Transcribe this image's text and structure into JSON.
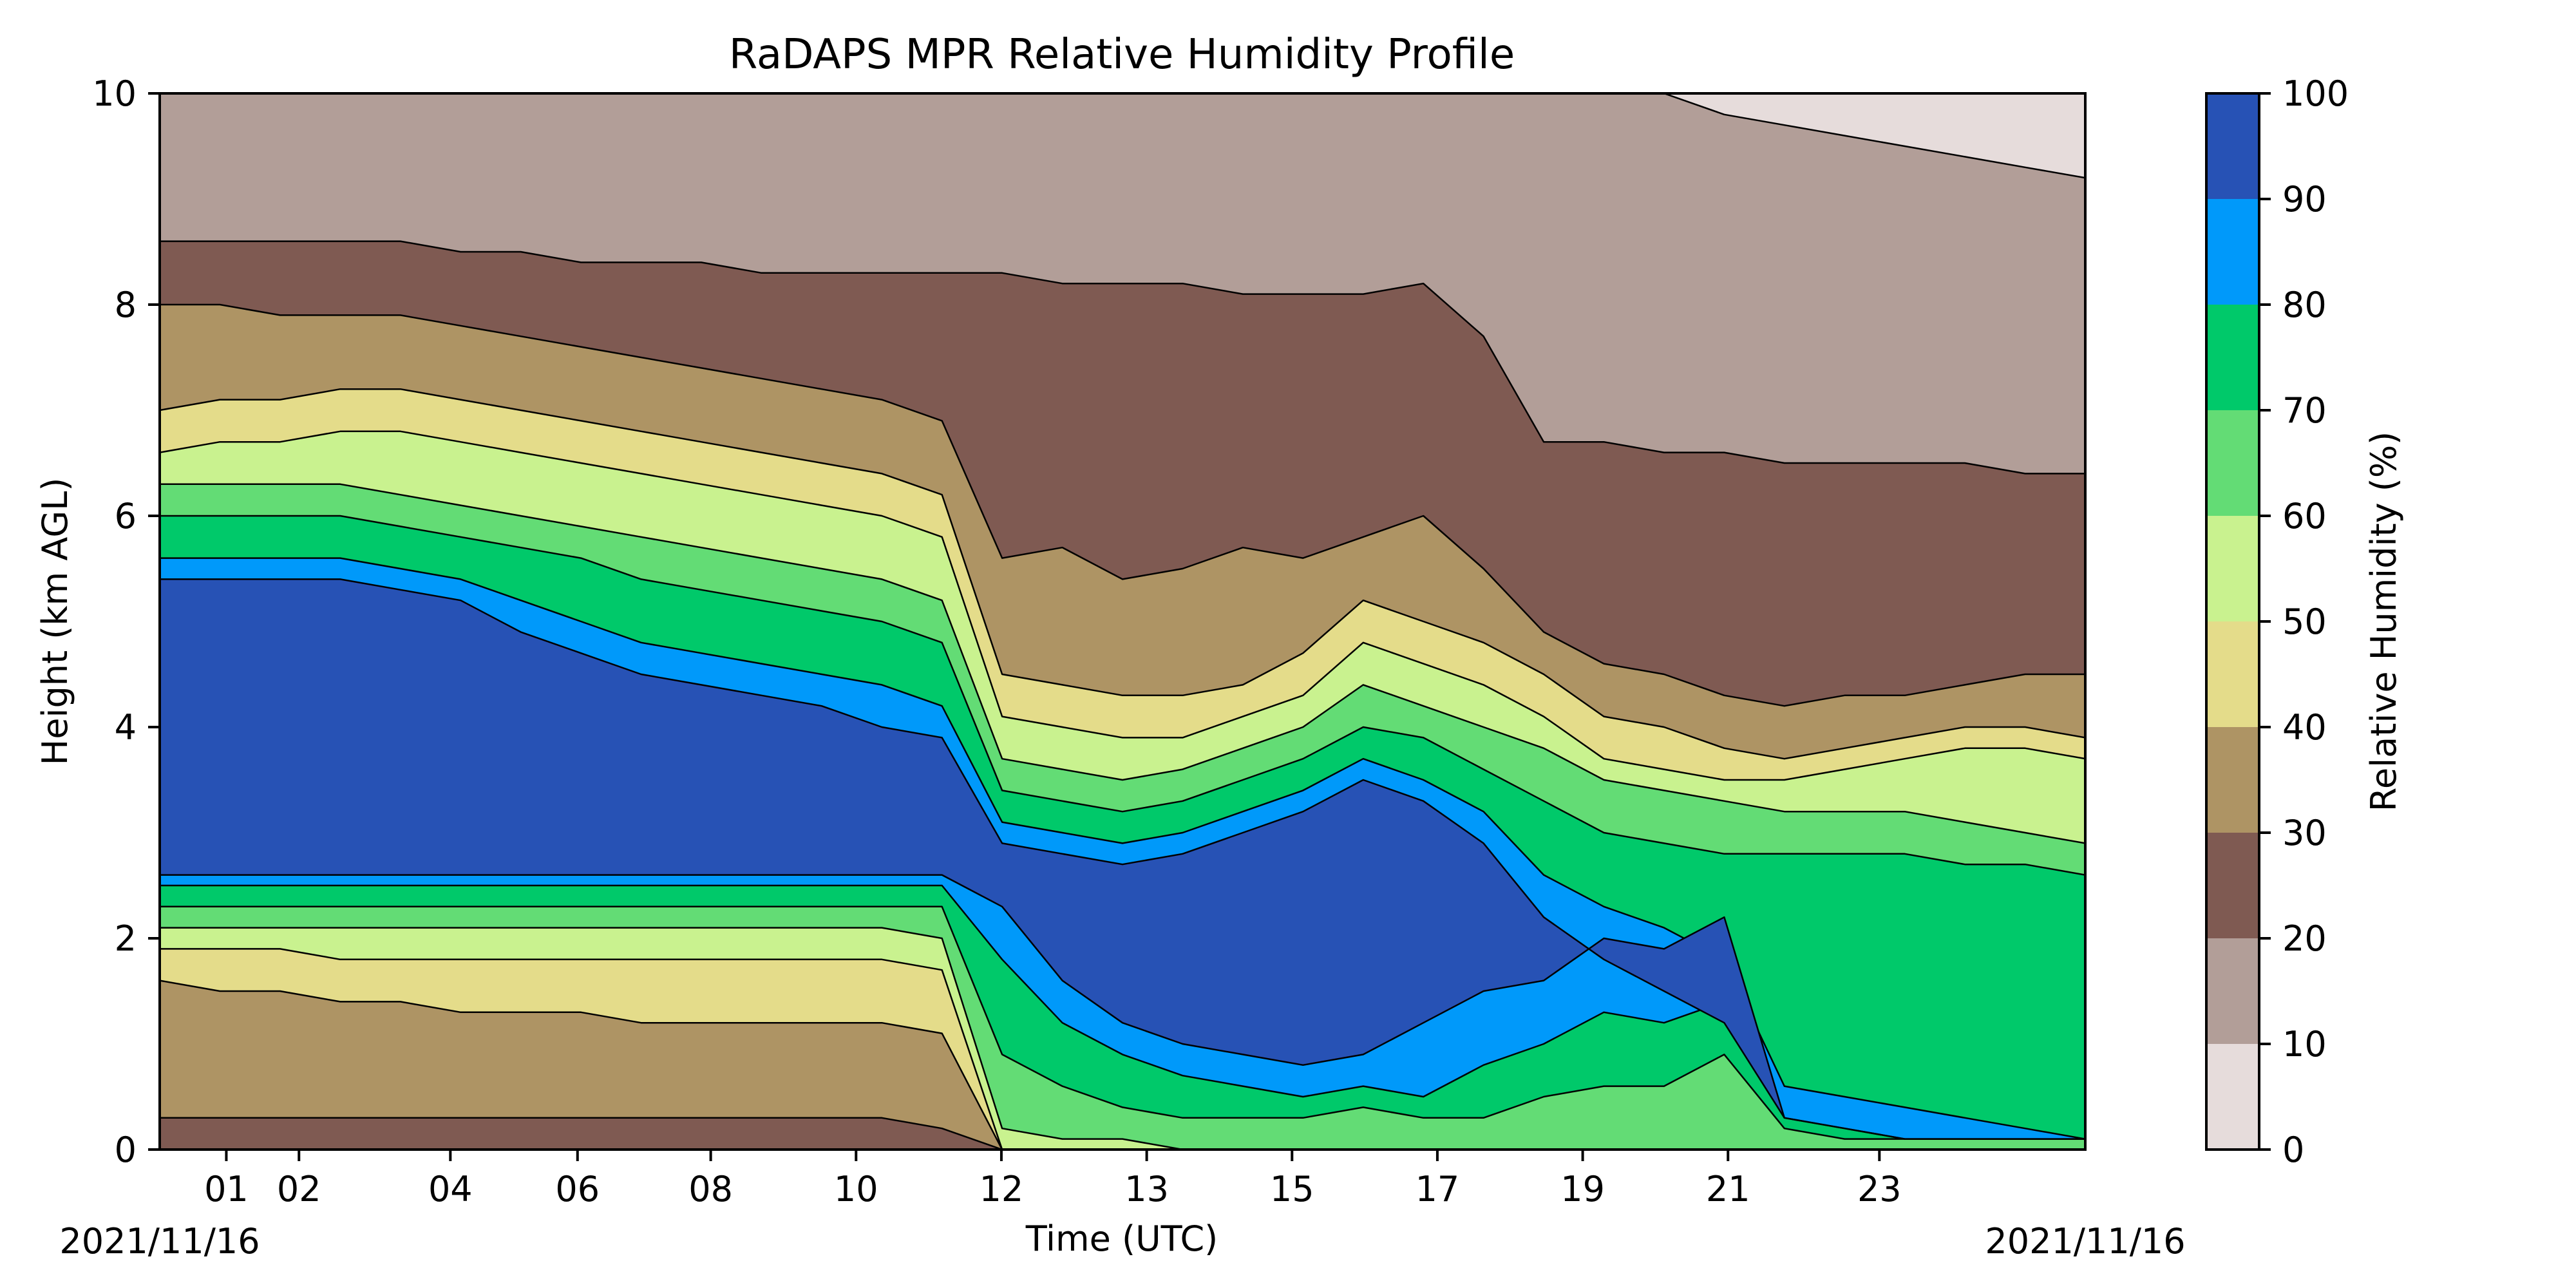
{
  "chart_data": {
    "type": "heatmap",
    "title": "RaDAPS MPR Relative Humidity Profile",
    "xlabel": "Time (UTC)",
    "ylabel": "Height (km AGL)",
    "colorbar_label": "Relative Humidity (%)",
    "x_tick_labels": [
      "01",
      "02",
      "04",
      "06",
      "08",
      "10",
      "12",
      "13",
      "15",
      "17",
      "19",
      "21",
      "23"
    ],
    "x_tick_hours": [
      1.1,
      2.3,
      4.8,
      6.9,
      9.1,
      11.5,
      13.9,
      16.3,
      18.7,
      21.1,
      23.5,
      25.9,
      28.4
    ],
    "x_range_hours": [
      0,
      31.8
    ],
    "date_left": "2021/11/16",
    "date_right": "2021/11/16",
    "y_ticks": [
      0,
      2,
      4,
      6,
      8,
      10
    ],
    "ylim": [
      0,
      10
    ],
    "levels": [
      0,
      10,
      20,
      30,
      40,
      50,
      60,
      70,
      80,
      90,
      100
    ],
    "level_colors": [
      "#e6dcdb",
      "#b29e98",
      "#7f5a52",
      "#ae9464",
      "#e4dc8a",
      "#c9f28f",
      "#63dc75",
      "#00c96a",
      "#0099fa",
      "#2752b5"
    ],
    "bands": [
      {
        "name": "0-10",
        "boundary_top": [
          10,
          10,
          10,
          10,
          10,
          10,
          10,
          10,
          10,
          10,
          10,
          10,
          10,
          10,
          10,
          10,
          10,
          10,
          10,
          10,
          10,
          10,
          10,
          10,
          10,
          10,
          10,
          10,
          10,
          10,
          10,
          10,
          10
        ]
      },
      {
        "name": "10-20",
        "boundary_top": [
          10,
          10,
          10,
          10,
          10,
          10,
          10,
          10,
          10,
          10,
          10,
          10,
          10,
          10,
          10,
          10,
          10,
          10,
          10,
          10,
          10,
          10,
          10,
          10,
          10,
          10,
          9.8,
          9.7,
          9.6,
          9.5,
          9.4,
          9.3,
          9.2
        ]
      },
      {
        "name": "20-30",
        "boundary_top": [
          8.6,
          8.6,
          8.6,
          8.6,
          8.6,
          8.5,
          8.5,
          8.4,
          8.4,
          8.4,
          8.3,
          8.3,
          8.3,
          8.3,
          8.3,
          8.2,
          8.2,
          8.2,
          8.1,
          8.1,
          8.1,
          8.2,
          7.7,
          6.7,
          6.7,
          6.6,
          6.6,
          6.5,
          6.5,
          6.5,
          6.5,
          6.4,
          6.4
        ]
      },
      {
        "name": "30-40",
        "boundary_top": [
          8.0,
          8.0,
          7.9,
          7.9,
          7.9,
          7.8,
          7.7,
          7.6,
          7.5,
          7.4,
          7.3,
          7.2,
          7.1,
          6.9,
          5.6,
          5.7,
          5.4,
          5.5,
          5.7,
          5.6,
          5.8,
          6.0,
          5.5,
          4.9,
          4.6,
          4.5,
          4.3,
          4.2,
          4.3,
          4.3,
          4.4,
          4.5,
          4.5
        ]
      },
      {
        "name": "40-50",
        "boundary_top": [
          7.0,
          7.1,
          7.1,
          7.2,
          7.2,
          7.1,
          7.0,
          6.9,
          6.8,
          6.7,
          6.6,
          6.5,
          6.4,
          6.2,
          4.5,
          4.4,
          4.3,
          4.3,
          4.4,
          4.7,
          5.2,
          5.0,
          4.8,
          4.5,
          4.1,
          4.0,
          3.8,
          3.7,
          3.8,
          3.9,
          4.0,
          4.0,
          3.9
        ]
      },
      {
        "name": "50-60",
        "boundary_top": [
          6.6,
          6.7,
          6.7,
          6.8,
          6.8,
          6.7,
          6.6,
          6.5,
          6.4,
          6.3,
          6.2,
          6.1,
          6.0,
          5.8,
          4.1,
          4.0,
          3.9,
          3.9,
          4.1,
          4.3,
          4.8,
          4.6,
          4.4,
          4.1,
          3.7,
          3.6,
          3.5,
          3.5,
          3.6,
          3.7,
          3.8,
          3.8,
          3.7
        ]
      },
      {
        "name": "60-70",
        "boundary_top": [
          6.3,
          6.3,
          6.3,
          6.3,
          6.2,
          6.1,
          6.0,
          5.9,
          5.8,
          5.7,
          5.6,
          5.5,
          5.4,
          5.2,
          3.7,
          3.6,
          3.5,
          3.6,
          3.8,
          4.0,
          4.4,
          4.2,
          4.0,
          3.8,
          3.5,
          3.4,
          3.3,
          3.2,
          3.2,
          3.2,
          3.1,
          3.0,
          2.9
        ]
      },
      {
        "name": "70-80",
        "boundary_top": [
          6.0,
          6.0,
          6.0,
          6.0,
          5.9,
          5.8,
          5.7,
          5.6,
          5.4,
          5.3,
          5.2,
          5.1,
          5.0,
          4.8,
          3.4,
          3.3,
          3.2,
          3.3,
          3.5,
          3.7,
          4.0,
          3.9,
          3.6,
          3.3,
          3.0,
          2.9,
          2.8,
          2.8,
          2.8,
          2.8,
          2.7,
          2.7,
          2.6
        ]
      },
      {
        "name": "80-90",
        "boundary_top": [
          5.6,
          5.6,
          5.6,
          5.6,
          5.5,
          5.4,
          5.2,
          5.0,
          4.8,
          4.7,
          4.6,
          4.5,
          4.4,
          4.2,
          3.1,
          3.0,
          2.9,
          3.0,
          3.2,
          3.4,
          3.7,
          3.5,
          3.2,
          2.6,
          2.3,
          2.1,
          1.8,
          0.6,
          0.5,
          0.4,
          0.3,
          0.2,
          0.1
        ]
      },
      {
        "name": "90-100",
        "boundary_top": [
          5.4,
          5.4,
          5.4,
          5.4,
          5.3,
          5.2,
          4.9,
          4.7,
          4.5,
          4.4,
          4.3,
          4.2,
          4.0,
          3.9,
          2.9,
          2.8,
          2.7,
          2.8,
          3.0,
          3.2,
          3.5,
          3.3,
          2.9,
          2.2,
          1.8,
          1.5,
          1.2,
          0.3,
          0.2,
          0.1,
          0.1,
          0.1,
          0.1
        ]
      }
    ],
    "band_bottoms": {
      "90-100": [
        2.6,
        2.6,
        2.6,
        2.6,
        2.6,
        2.6,
        2.6,
        2.6,
        2.6,
        2.6,
        2.6,
        2.6,
        2.6,
        2.6,
        2.3,
        1.6,
        1.2,
        1.0,
        0.9,
        0.8,
        0.9,
        1.2,
        1.5,
        1.6,
        2.0,
        1.9,
        2.2,
        0.3,
        0.2,
        0.1,
        0.1,
        0.1,
        0.1
      ],
      "80-90": [
        2.5,
        2.5,
        2.5,
        2.5,
        2.5,
        2.5,
        2.5,
        2.5,
        2.5,
        2.5,
        2.5,
        2.5,
        2.5,
        2.5,
        1.8,
        1.2,
        0.9,
        0.7,
        0.6,
        0.5,
        0.6,
        0.5,
        0.8,
        1.0,
        1.3,
        1.2,
        1.4,
        0.3,
        0.2,
        0.1,
        0.1,
        0.1,
        0.1
      ],
      "70-80": [
        2.3,
        2.3,
        2.3,
        2.3,
        2.3,
        2.3,
        2.3,
        2.3,
        2.3,
        2.3,
        2.3,
        2.3,
        2.3,
        2.3,
        0.9,
        0.6,
        0.4,
        0.3,
        0.3,
        0.3,
        0.4,
        0.3,
        0.3,
        0.5,
        0.6,
        0.6,
        0.9,
        0.2,
        0.1,
        0.1,
        0.1,
        0.1,
        0.1
      ],
      "60-70": [
        2.1,
        2.1,
        2.1,
        2.1,
        2.1,
        2.1,
        2.1,
        2.1,
        2.1,
        2.1,
        2.1,
        2.1,
        2.1,
        2.0,
        0.2,
        0.1,
        0.1,
        0.0,
        0.0,
        0.0,
        0.0,
        0.0,
        0.0,
        0.0,
        0.0,
        0.0,
        0.0,
        0.0,
        0.0,
        0.0,
        0.0,
        0.0,
        0.0
      ],
      "50-60": [
        1.9,
        1.9,
        1.9,
        1.8,
        1.8,
        1.8,
        1.8,
        1.8,
        1.8,
        1.8,
        1.8,
        1.8,
        1.8,
        1.7,
        0.0,
        0.0,
        0.0,
        0.0,
        0.0,
        0.0,
        0.0,
        0.0,
        0.0,
        0.0,
        0.0,
        0.0,
        0.0,
        0.0,
        0.0,
        0.0,
        0.0,
        0.0,
        0.0
      ],
      "40-50": [
        1.6,
        1.5,
        1.5,
        1.4,
        1.4,
        1.3,
        1.3,
        1.3,
        1.2,
        1.2,
        1.2,
        1.2,
        1.2,
        1.1,
        0.0,
        0.0,
        0.0,
        0.0,
        0.0,
        0.0,
        0.0,
        0.0,
        0.0,
        0.0,
        0.0,
        0.0,
        0.0,
        0.0,
        0.0,
        0.0,
        0.0,
        0.0,
        0.0
      ],
      "30-40": [
        0.3,
        0.3,
        0.3,
        0.3,
        0.3,
        0.3,
        0.3,
        0.3,
        0.3,
        0.3,
        0.3,
        0.3,
        0.3,
        0.2,
        0.0,
        0.0,
        0.0,
        0.0,
        0.0,
        0.0,
        0.0,
        0.0,
        0.0,
        0.0,
        0.0,
        0.0,
        0.0,
        0.0,
        0.0,
        0.0,
        0.0,
        0.0,
        0.0
      ]
    },
    "grid": false,
    "legend": "colorbar-right"
  }
}
